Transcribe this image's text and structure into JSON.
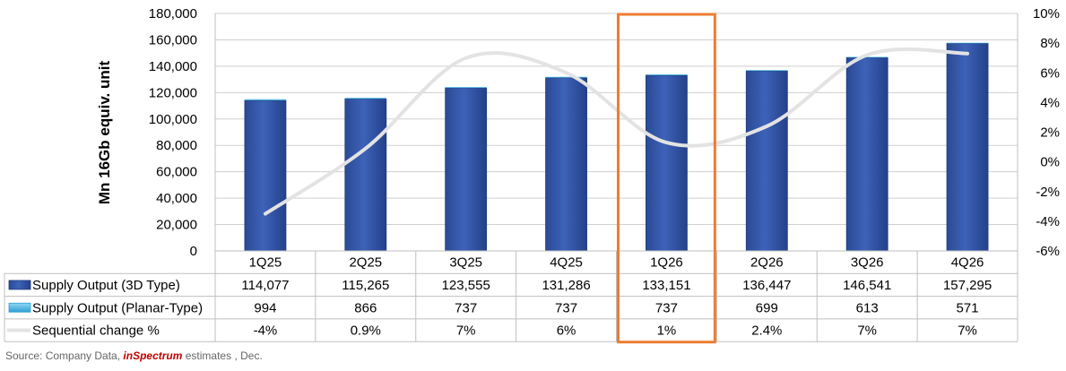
{
  "chart_data": {
    "type": "bar",
    "categories": [
      "1Q25",
      "2Q25",
      "3Q25",
      "4Q25",
      "1Q26",
      "2Q26",
      "3Q26",
      "4Q26"
    ],
    "series": [
      {
        "name": "Supply Output (3D Type)",
        "kind": "bar",
        "values": [
          114077,
          115265,
          123555,
          131286,
          133151,
          136447,
          146541,
          157295
        ],
        "labels": [
          "114,077",
          "115,265",
          "123,555",
          "131,286",
          "133,151",
          "136,447",
          "146,541",
          "157,295"
        ],
        "color": "#3356a6"
      },
      {
        "name": "Supply Output (Planar-Type)",
        "kind": "bar",
        "values": [
          994,
          866,
          737,
          737,
          737,
          699,
          613,
          571
        ],
        "labels": [
          "994",
          "866",
          "737",
          "737",
          "737",
          "699",
          "613",
          "571"
        ],
        "color": "#5bc0e8"
      },
      {
        "name": "Sequential change %",
        "kind": "line",
        "axis": "secondary",
        "values": [
          -3.5,
          0.9,
          7.0,
          6.0,
          1.3,
          2.4,
          7.2,
          7.3
        ],
        "labels": [
          "-4%",
          "0.9%",
          "7%",
          "6%",
          "1%",
          "2.4%",
          "7%",
          "7%"
        ],
        "color": "#e3e3e3"
      }
    ],
    "ylabel": "Mn 16Gb equiv. unit",
    "ylim": [
      0,
      180000
    ],
    "y2lim": [
      -6,
      10
    ],
    "yticks": [
      "0",
      "20,000",
      "40,000",
      "60,000",
      "80,000",
      "100,000",
      "120,000",
      "140,000",
      "160,000",
      "180,000"
    ],
    "y2ticks": [
      "-6%",
      "-4%",
      "-2%",
      "0%",
      "2%",
      "4%",
      "6%",
      "8%",
      "10%"
    ],
    "grid": true,
    "highlight_category": "1Q26",
    "highlight_color": "#ed7d31"
  },
  "source": {
    "prefix": "Source: Company Data, ",
    "brand": "inSpectrum",
    "suffix": " estimates , Dec."
  }
}
